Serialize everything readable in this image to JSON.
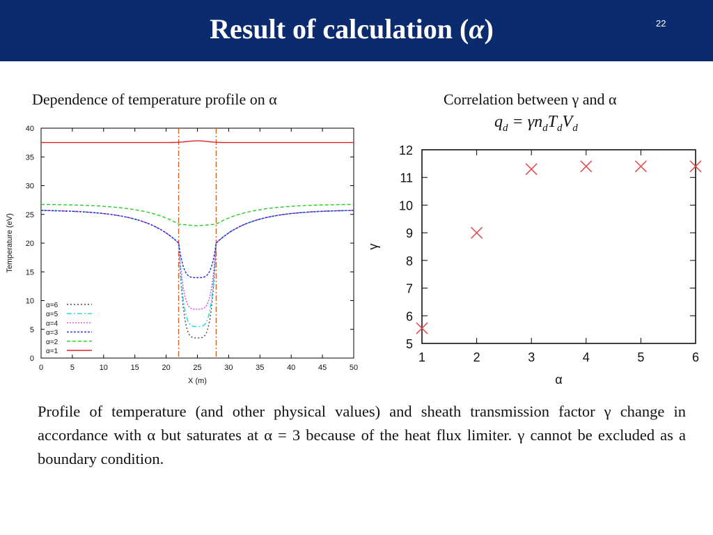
{
  "slide": {
    "title_prefix": "Result of calculation (",
    "title_symbol": "α",
    "title_suffix": ")",
    "number": "22"
  },
  "left_caption": "Dependence of temperature profile on α",
  "right_caption": "Correlation between γ and α",
  "formula": {
    "lhs": "q",
    "lhs_sub": "d",
    "eq": " = γn",
    "n_sub": "d",
    "t": "T",
    "t_sub": "d",
    "v": "V",
    "v_sub": "d"
  },
  "summary": "Profile of temperature (and other physical values) and sheath transmission factor γ change in accordance with α but saturates at α = 3 because of the heat flux limiter. γ cannot be excluded as a boundary condition.",
  "chart_data": [
    {
      "type": "line",
      "title": "",
      "xlabel": "X (m)",
      "ylabel": "Temperature (eV)",
      "xlim": [
        0,
        50
      ],
      "ylim": [
        0,
        40
      ],
      "xticks": [
        0,
        5,
        10,
        15,
        20,
        25,
        30,
        35,
        40,
        45,
        50
      ],
      "yticks": [
        0,
        5,
        10,
        15,
        20,
        25,
        30,
        35,
        40
      ],
      "vlines": [
        22,
        28
      ],
      "vline_color": "#e0602a",
      "legend_position": "bottom-left",
      "series": [
        {
          "name": "α=6",
          "color": "#444444",
          "dash": "2,3",
          "edge": 25.8,
          "mid": 3.5
        },
        {
          "name": "α=5",
          "color": "#18d8e8",
          "dash": "7,3,2,3",
          "edge": 25.8,
          "mid": 5.5
        },
        {
          "name": "α=4",
          "color": "#e040e0",
          "dash": "2,2",
          "edge": 25.8,
          "mid": 8.5
        },
        {
          "name": "α=3",
          "color": "#2030c8",
          "dash": "3,2",
          "edge": 25.8,
          "mid": 14.0
        },
        {
          "name": "α=2",
          "color": "#20d020",
          "dash": "5,3",
          "edge": 26.8,
          "mid": 23.0
        },
        {
          "name": "α=1",
          "color": "#e02020",
          "dash": "",
          "edge": 37.5,
          "mid": 37.8
        }
      ]
    },
    {
      "type": "scatter",
      "xlabel": "α",
      "ylabel": "γ",
      "xlim": [
        1,
        6
      ],
      "ylim": [
        5,
        12
      ],
      "xticks": [
        1,
        2,
        3,
        4,
        5,
        6
      ],
      "yticks": [
        5,
        6,
        7,
        8,
        9,
        10,
        11,
        12
      ],
      "marker": "x",
      "color": "#e05050",
      "x": [
        1,
        2,
        3,
        4,
        5,
        6
      ],
      "y": [
        5.55,
        9.0,
        11.3,
        11.4,
        11.4,
        11.4
      ]
    }
  ]
}
